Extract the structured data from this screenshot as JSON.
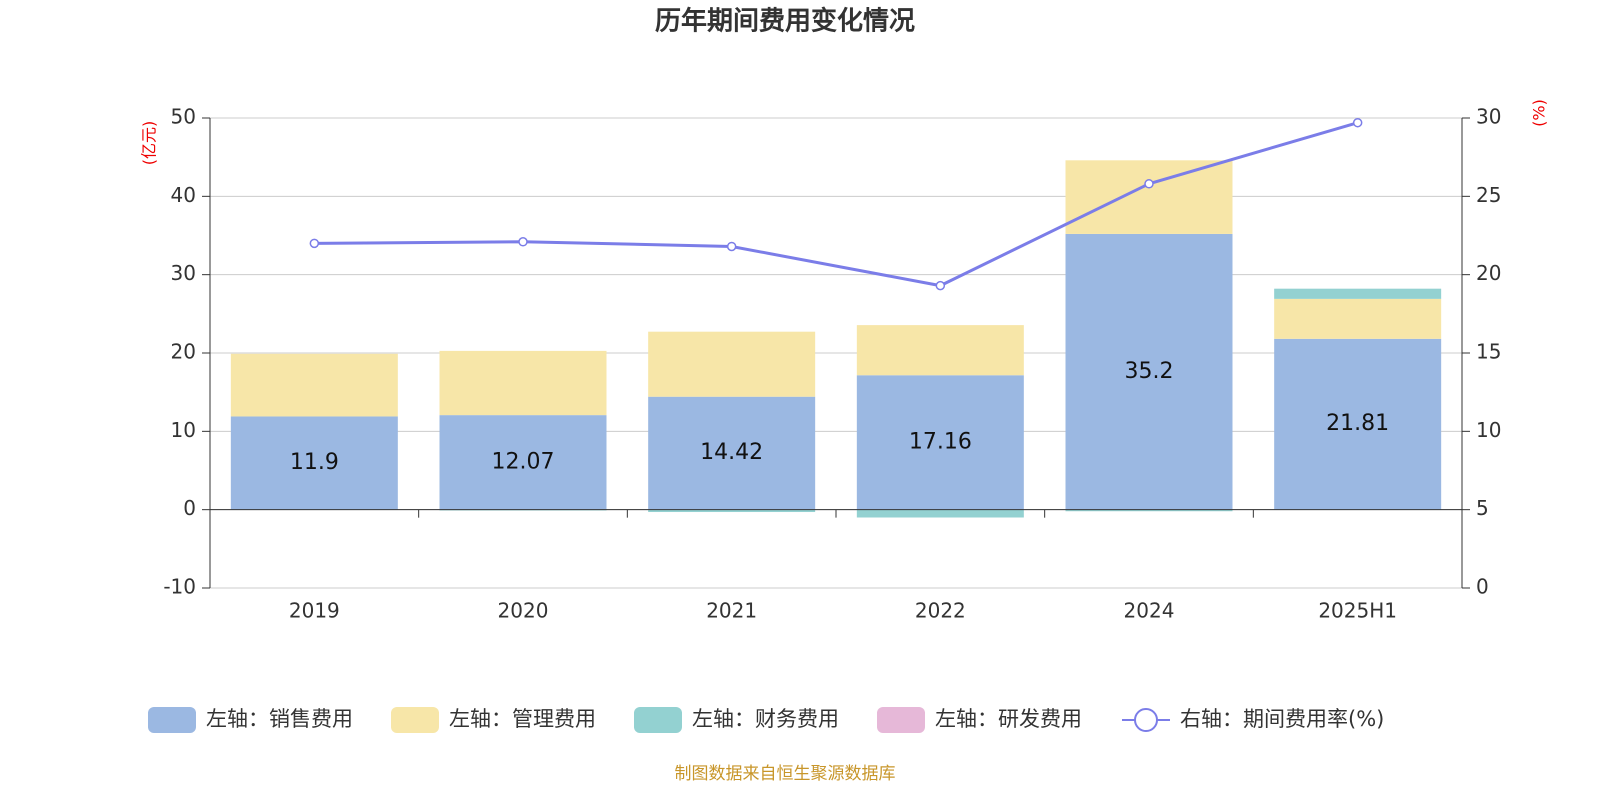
{
  "chart_data": {
    "type": "bar-line",
    "title": "历年期间费用变化情况",
    "y_label": "(亿元)",
    "y2_label": "(%)",
    "source": "制图数据来自恒生聚源数据库",
    "categories": [
      "2019",
      "2020",
      "2021",
      "2022",
      "2024",
      "2025H1"
    ],
    "series": [
      {
        "name": "左轴：销售费用",
        "type": "bar",
        "color": "#9bb8e2",
        "values": [
          11.9,
          12.07,
          14.42,
          17.16,
          35.2,
          21.81
        ],
        "show_labels": true
      },
      {
        "name": "左轴：管理费用",
        "type": "bar",
        "color": "#f7e6a8",
        "values": [
          8.0,
          8.2,
          8.3,
          6.4,
          9.4,
          5.1
        ]
      },
      {
        "name": "左轴：财务费用",
        "type": "bar",
        "color": "#93d1d1",
        "values": [
          0,
          -0.1,
          -0.3,
          -1.0,
          -0.2,
          1.3
        ]
      },
      {
        "name": "左轴：研发费用",
        "type": "bar",
        "color": "#e6b8d8",
        "values": [
          0,
          0,
          0,
          0,
          0,
          0
        ]
      },
      {
        "name": "右轴：期间费用率(%)",
        "type": "line",
        "axis": "y2",
        "color": "#7b7de8",
        "values": [
          22.0,
          22.1,
          21.8,
          19.3,
          25.8,
          29.7
        ]
      }
    ],
    "ylim": [
      -10,
      50
    ],
    "yticks": [
      -10,
      0,
      10,
      20,
      30,
      40,
      50
    ],
    "y2lim": [
      0,
      30
    ],
    "y2ticks": [
      0,
      5,
      10,
      15,
      20,
      25,
      30
    ],
    "grid": true
  }
}
